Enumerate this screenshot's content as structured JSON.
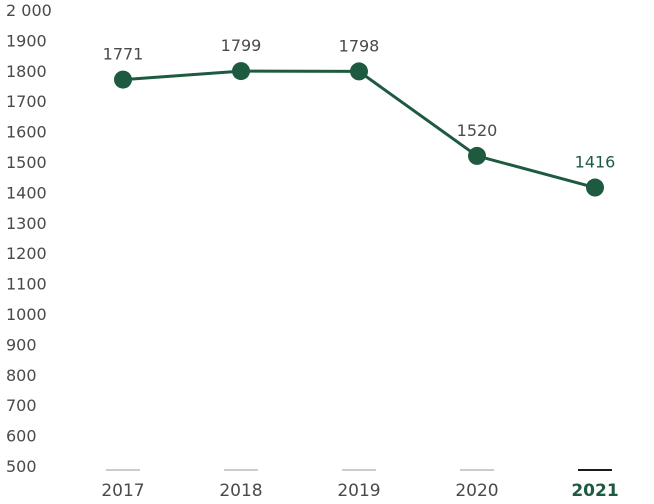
{
  "chart_data": {
    "type": "line",
    "x": [
      "2017",
      "2018",
      "2019",
      "2020",
      "2021"
    ],
    "values": [
      1771,
      1799,
      1798,
      1520,
      1416
    ],
    "data_labels": [
      "1771",
      "1799",
      "1798",
      "1520",
      "1416"
    ],
    "y_ticks": [
      "2 000",
      "1900",
      "1800",
      "1700",
      "1600",
      "1500",
      "1400",
      "1300",
      "1200",
      "1100",
      "1000",
      "900",
      "800",
      "700",
      "600",
      "500"
    ],
    "y_tick_values": [
      2000,
      1900,
      1800,
      1700,
      1600,
      1500,
      1400,
      1300,
      1200,
      1100,
      1000,
      900,
      800,
      700,
      600,
      500
    ],
    "ylim": [
      500,
      2000
    ],
    "highlight_index": 4,
    "grid": false,
    "colors": {
      "line": "#1e5a40",
      "marker": "#1e5a40",
      "text": "#4a4a4a",
      "highlight_text": "#1e5a40",
      "baseline": "#9a9a9a",
      "highlight_baseline": "#1a1a1a"
    }
  }
}
